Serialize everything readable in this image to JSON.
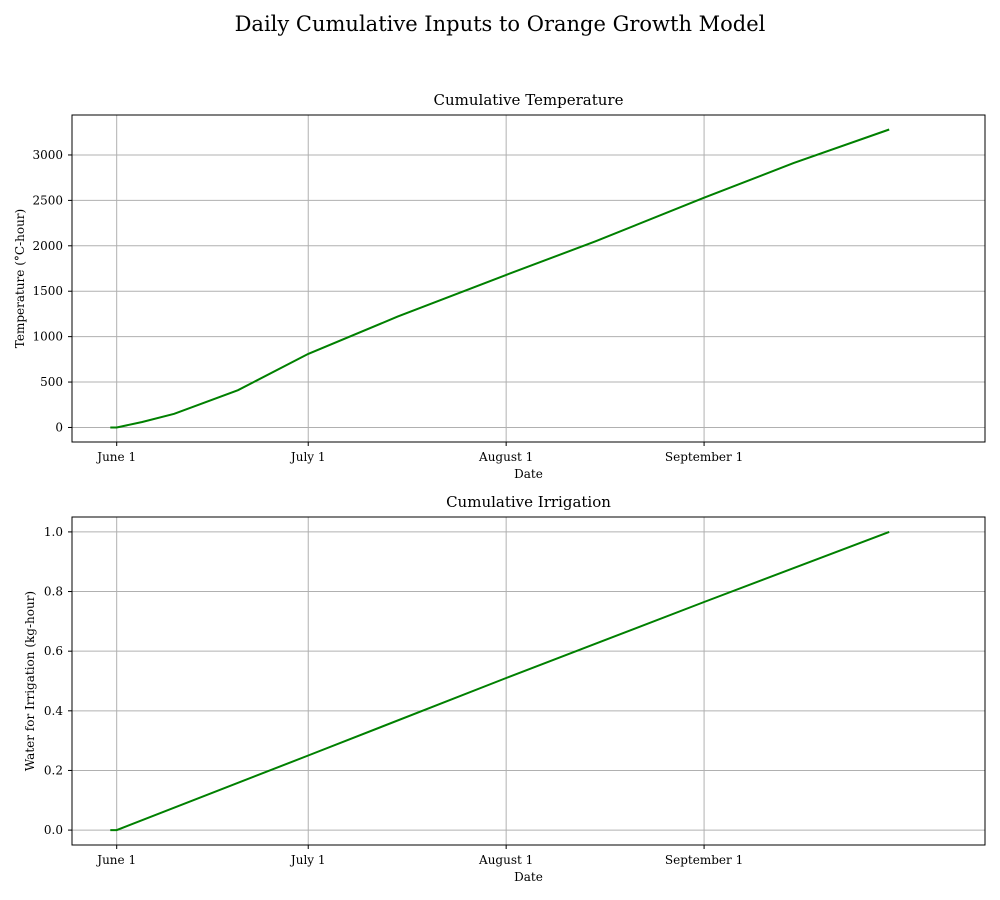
{
  "figure": {
    "title": "Daily Cumulative Inputs to Orange Growth Model"
  },
  "chart_data": [
    {
      "type": "line",
      "title": "Cumulative Temperature",
      "xlabel": "Date",
      "ylabel": "Temperature (°C-hour)",
      "x_tick_labels": [
        "June 1",
        "July 1",
        "August 1",
        "September 1"
      ],
      "x_tick_dates": [
        "2023-06-01",
        "2023-07-01",
        "2023-08-01",
        "2023-09-01"
      ],
      "xlim": [
        "2023-05-25",
        "2023-10-15"
      ],
      "ylim": [
        -160,
        3440
      ],
      "y_ticks": [
        0,
        500,
        1000,
        1500,
        2000,
        2500,
        3000
      ],
      "grid": true,
      "line_color": "#008000",
      "series": [
        {
          "x": [
            "2023-05-31",
            "2023-06-01",
            "2023-06-05",
            "2023-06-10",
            "2023-06-20",
            "2023-07-01",
            "2023-07-15",
            "2023-08-01",
            "2023-08-15",
            "2023-09-01",
            "2023-09-15",
            "2023-09-30"
          ],
          "values": [
            0,
            0,
            60,
            150,
            410,
            810,
            1220,
            1680,
            2050,
            2530,
            2910,
            3280
          ]
        }
      ]
    },
    {
      "type": "line",
      "title": "Cumulative Irrigation",
      "xlabel": "Date",
      "ylabel": "Water for Irrigation (kg-hour)",
      "x_tick_labels": [
        "June 1",
        "July 1",
        "August 1",
        "September 1"
      ],
      "x_tick_dates": [
        "2023-06-01",
        "2023-07-01",
        "2023-08-01",
        "2023-09-01"
      ],
      "xlim": [
        "2023-05-25",
        "2023-10-15"
      ],
      "ylim": [
        -0.05,
        1.05
      ],
      "y_ticks": [
        0.0,
        0.2,
        0.4,
        0.6,
        0.8,
        1.0
      ],
      "y_tick_labels": [
        "0.0",
        "0.2",
        "0.4",
        "0.6",
        "0.8",
        "1.0"
      ],
      "grid": true,
      "line_color": "#008000",
      "series": [
        {
          "x": [
            "2023-05-31",
            "2023-06-01",
            "2023-07-01",
            "2023-08-01",
            "2023-09-01",
            "2023-09-30"
          ],
          "values": [
            0,
            0,
            0.25,
            0.51,
            0.765,
            1.0
          ]
        }
      ]
    }
  ]
}
